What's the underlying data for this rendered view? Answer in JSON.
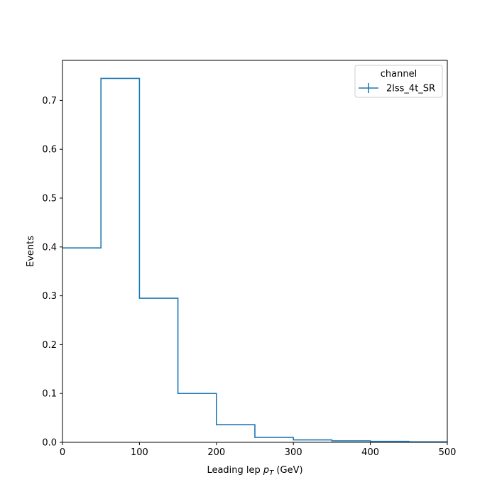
{
  "chart_data": {
    "type": "histogram-step",
    "xlabel_prefix": "Leading lep ",
    "xlabel_var": "p",
    "xlabel_sub": "T",
    "xlabel_suffix": " (GeV)",
    "ylabel": "Events",
    "xlim": [
      0,
      500
    ],
    "ylim": [
      0,
      0.782
    ],
    "xticks": [
      0,
      100,
      200,
      300,
      400,
      500
    ],
    "yticks": [
      0.0,
      0.1,
      0.2,
      0.3,
      0.4,
      0.5,
      0.6,
      0.7
    ],
    "ytick_labels": [
      "0.0",
      "0.1",
      "0.2",
      "0.3",
      "0.4",
      "0.5",
      "0.6",
      "0.7"
    ],
    "bin_edges": [
      0,
      50,
      100,
      150,
      200,
      250,
      300,
      350,
      400,
      450,
      500
    ],
    "series": [
      {
        "name": "2lss_4t_SR",
        "color": "#1f77b4",
        "values": [
          0.398,
          0.745,
          0.295,
          0.1,
          0.036,
          0.01,
          0.005,
          0.003,
          0.002,
          0.001
        ]
      }
    ],
    "legend": {
      "title": "channel",
      "position": "top-right"
    },
    "grid": false
  }
}
